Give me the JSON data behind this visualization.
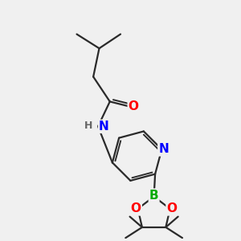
{
  "bg_color": "#f0f0f0",
  "bond_color": "#2a2a2a",
  "bond_width": 1.6,
  "atom_colors": {
    "O": "#ff0000",
    "N": "#0000ff",
    "B": "#00aa00",
    "H": "#666666"
  },
  "font_size_atom": 11,
  "font_size_methyl": 9,
  "figsize": [
    3.0,
    3.0
  ],
  "dpi": 100
}
